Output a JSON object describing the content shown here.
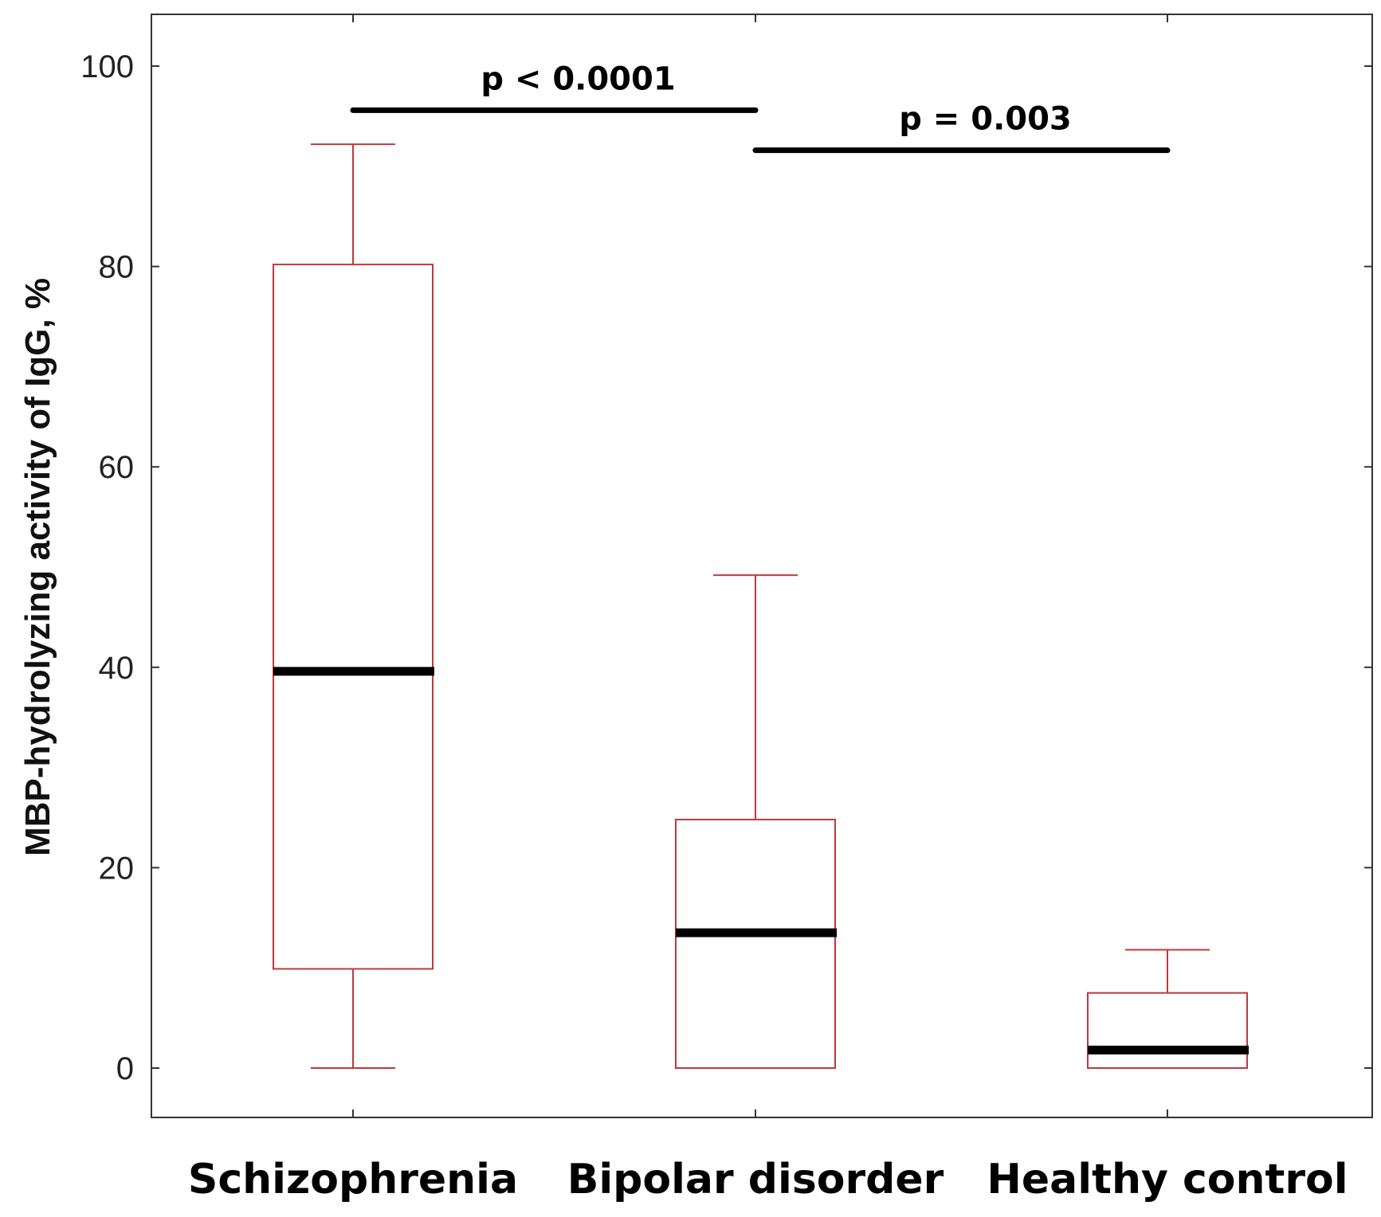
{
  "chart_data": {
    "type": "boxplot",
    "title": "",
    "xlabel": "",
    "ylabel": "MBP-hydrolyzing activity of IgG, %",
    "ylim": [
      -5,
      105
    ],
    "yticks": [
      0,
      20,
      40,
      60,
      80,
      100
    ],
    "ytick_labels": [
      "0",
      "20",
      "40",
      "60",
      "80",
      "100"
    ],
    "grid": false,
    "categories": [
      "Schizophrenia",
      "Bipolar disorder",
      "Healthy control"
    ],
    "boxes": [
      {
        "name": "Schizophrenia",
        "min": 0,
        "q1": 9.9,
        "median": 39.6,
        "q3": 80.2,
        "max": 92.2
      },
      {
        "name": "Bipolar disorder",
        "min": 0,
        "q1": 0,
        "median": 13.5,
        "q3": 24.8,
        "max": 49.2
      },
      {
        "name": "Healthy control",
        "min": 0,
        "q1": 0,
        "median": 1.8,
        "q3": 7.5,
        "max": 11.8
      }
    ],
    "significance": [
      {
        "from": "Schizophrenia",
        "to": "Bipolar disorder",
        "label": "p < 0.0001",
        "y": 95.6
      },
      {
        "from": "Bipolar disorder",
        "to": "Healthy control",
        "label": "p = 0.003",
        "y": 91.6
      }
    ],
    "colors": {
      "box": "#c0393b",
      "median": "#000000",
      "axis": "#333333"
    }
  }
}
